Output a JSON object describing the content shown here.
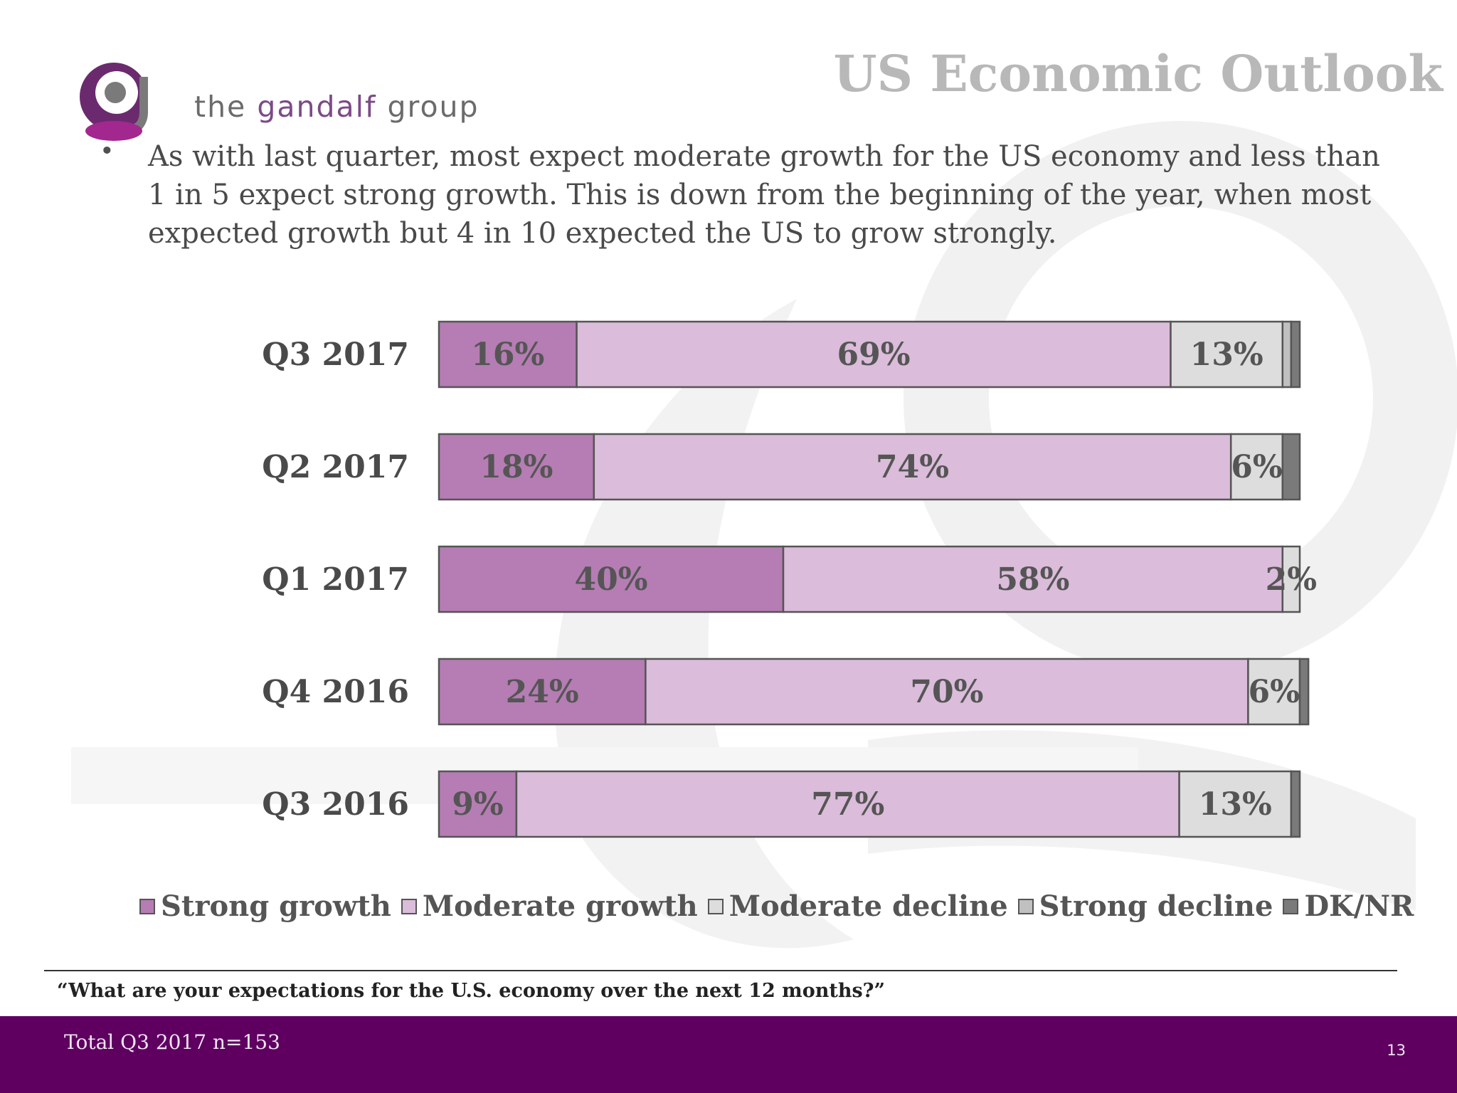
{
  "header": {
    "logo_text_prefix": "the ",
    "logo_text_accent": "gandalf",
    "logo_text_suffix": " group",
    "title": "US Economic Outlook"
  },
  "summary": {
    "bullet": "•",
    "text": "As with last quarter, most expect moderate growth for the US economy and less than 1 in 5 expect strong growth. This is down from the beginning of the year, when most expected growth but 4 in 10 expected the US to grow strongly."
  },
  "colors": {
    "strong_growth": "#b57db3",
    "moderate_growth": "#dbbcda",
    "moderate_decline": "#dddddd",
    "strong_decline": "#c0c0c0",
    "dk_nr": "#7a7a7a",
    "footer": "#5f0061"
  },
  "chart_data": {
    "type": "bar",
    "orientation": "horizontal",
    "stacked": true,
    "categories": [
      "Q3 2017",
      "Q2 2017",
      "Q1 2017",
      "Q4 2016",
      "Q3 2016"
    ],
    "series": [
      {
        "name": "Strong growth",
        "values": [
          16,
          18,
          40,
          24,
          9
        ],
        "labels": [
          "16%",
          "18%",
          "40%",
          "24%",
          "9%"
        ]
      },
      {
        "name": "Moderate growth",
        "values": [
          69,
          74,
          58,
          70,
          77
        ],
        "labels": [
          "69%",
          "74%",
          "58%",
          "70%",
          "77%"
        ]
      },
      {
        "name": "Moderate decline",
        "values": [
          13,
          6,
          2,
          6,
          13
        ],
        "labels": [
          "13%",
          "6%",
          "2%",
          "6%",
          "13%"
        ]
      },
      {
        "name": "Strong decline",
        "values": [
          1,
          0,
          0,
          0,
          0
        ],
        "labels": [
          "",
          "",
          "",
          "",
          ""
        ]
      },
      {
        "name": "DK/NR",
        "values": [
          1,
          2,
          0,
          1,
          1
        ],
        "labels": [
          "",
          "",
          "",
          "",
          ""
        ]
      }
    ],
    "xlim": [
      0,
      100
    ],
    "legend_position": "bottom",
    "grid": false
  },
  "question": "“What are your expectations for the U.S. economy over the next 12 months?”",
  "footer": {
    "note": "Total Q3 2017 n=153",
    "page_number": "13"
  }
}
